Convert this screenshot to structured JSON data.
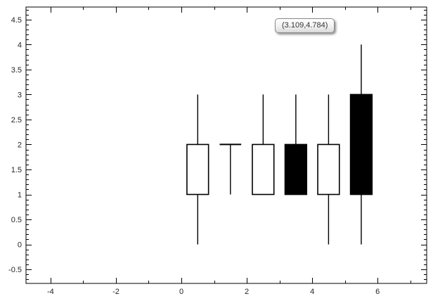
{
  "tooltip": {
    "text": "(3.109,4.784)"
  },
  "chart_data": {
    "type": "candlestick",
    "title": "",
    "xlabel": "",
    "ylabel": "",
    "grid": false,
    "legend": false,
    "x_axis": {
      "min": -4.75,
      "max": 7.5,
      "major_ticks": [
        -4,
        -2,
        0,
        2,
        4,
        6
      ],
      "major_tick_labels": [
        "-4",
        "-2",
        "0",
        "2",
        "4",
        "6"
      ],
      "minor_tick_step": 1
    },
    "y_axis": {
      "min": -0.78,
      "max": 4.75,
      "major_ticks": [
        4.5,
        4,
        3.5,
        3,
        2.5,
        2,
        1.5,
        1,
        0.5,
        0,
        -0.5
      ],
      "major_tick_labels": [
        "4.5",
        "4",
        "3.5",
        "3",
        "2.5",
        "2",
        "1.5",
        "1",
        "0.5",
        "0",
        "-0.5"
      ],
      "minor_tick_step": 0.1
    },
    "candles": [
      {
        "x": 0.5,
        "open": 1,
        "high": 3,
        "low": 0,
        "close": 2,
        "fill": "hollow"
      },
      {
        "x": 1.5,
        "open": 2,
        "high": 2,
        "low": 1,
        "close": 2,
        "fill": "hollow"
      },
      {
        "x": 2.5,
        "open": 1,
        "high": 3,
        "low": 1,
        "close": 2,
        "fill": "hollow"
      },
      {
        "x": 3.5,
        "open": 2,
        "high": 3,
        "low": 1,
        "close": 1,
        "fill": "filled"
      },
      {
        "x": 4.5,
        "open": 1,
        "high": 3,
        "low": 0,
        "close": 2,
        "fill": "hollow"
      },
      {
        "x": 5.5,
        "open": 3,
        "high": 4,
        "low": 0,
        "close": 1,
        "fill": "filled"
      }
    ],
    "candle_width_units": 0.66,
    "colors": {
      "axis": "#000000",
      "label": "#262626",
      "candle_stroke": "#000000",
      "hollow_fill": "#ffffff",
      "filled_fill": "#000000",
      "background": "#ffffff"
    }
  }
}
